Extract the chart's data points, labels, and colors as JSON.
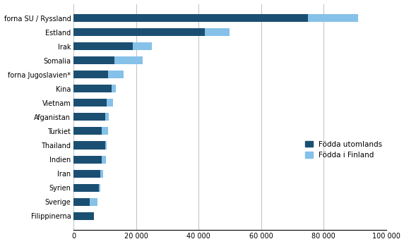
{
  "categories": [
    "forna SU / Ryssland",
    "Estland",
    "Irak",
    "Somalia",
    "forna Jugoslavien*",
    "Kina",
    "Vietnam",
    "Afganistan",
    "Turkiet",
    "Thailand",
    "Indien",
    "Iran",
    "Syrien",
    "Sverige",
    "Filippinerna"
  ],
  "born_abroad": [
    75000,
    42000,
    19000,
    13000,
    11000,
    12000,
    10500,
    10000,
    9000,
    10000,
    9000,
    8500,
    8000,
    5000,
    6500
  ],
  "born_in_finland": [
    16000,
    8000,
    6000,
    9000,
    5000,
    1500,
    2000,
    1200,
    2000,
    500,
    1200,
    1000,
    500,
    2500,
    0
  ],
  "color_abroad": "#1b4f72",
  "color_finland": "#85c1e9",
  "legend_abroad": "Födda utomlands",
  "legend_finland": "Födda i Finland",
  "xlim": [
    0,
    100000
  ],
  "xticks": [
    0,
    20000,
    40000,
    60000,
    80000,
    100000
  ],
  "xtick_labels": [
    "0",
    "20 000",
    "40 000",
    "60 000",
    "80 000",
    "100 000"
  ],
  "background_color": "#ffffff",
  "grid_color": "#c0c0c0"
}
